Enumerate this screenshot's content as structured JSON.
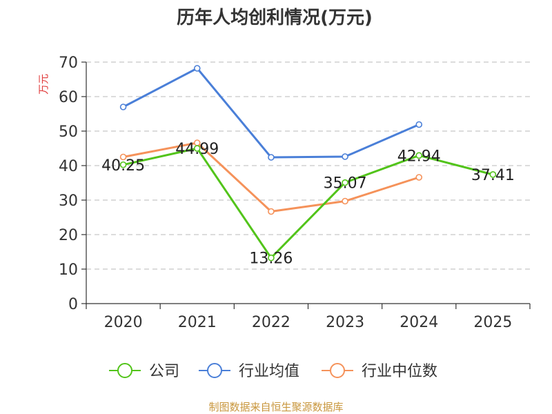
{
  "chart_data": {
    "type": "line",
    "title": "历年人均创利情况(万元)",
    "xlabel": "",
    "ylabel": "万元",
    "ylim": [
      0,
      70
    ],
    "yticks": [
      0,
      10,
      20,
      30,
      40,
      50,
      60,
      70
    ],
    "categories": [
      "2020",
      "2021",
      "2022",
      "2023",
      "2024",
      "2025"
    ],
    "grid": true,
    "legend_position": "bottom",
    "series": [
      {
        "name": "公司",
        "color": "#52c41a",
        "values": [
          40.25,
          44.99,
          13.26,
          35.07,
          42.94,
          37.41
        ],
        "labels": [
          "40.25",
          "44.99",
          "13.26",
          "35.07",
          "42.94",
          "37.41"
        ]
      },
      {
        "name": "行业均值",
        "color": "#4a7fd8",
        "values": [
          57.0,
          68.2,
          42.4,
          42.6,
          51.9,
          null
        ]
      },
      {
        "name": "行业中位数",
        "color": "#f5925a",
        "values": [
          42.5,
          46.6,
          26.7,
          29.7,
          36.6,
          null
        ]
      }
    ]
  },
  "source": "制图数据来自恒生聚源数据库"
}
